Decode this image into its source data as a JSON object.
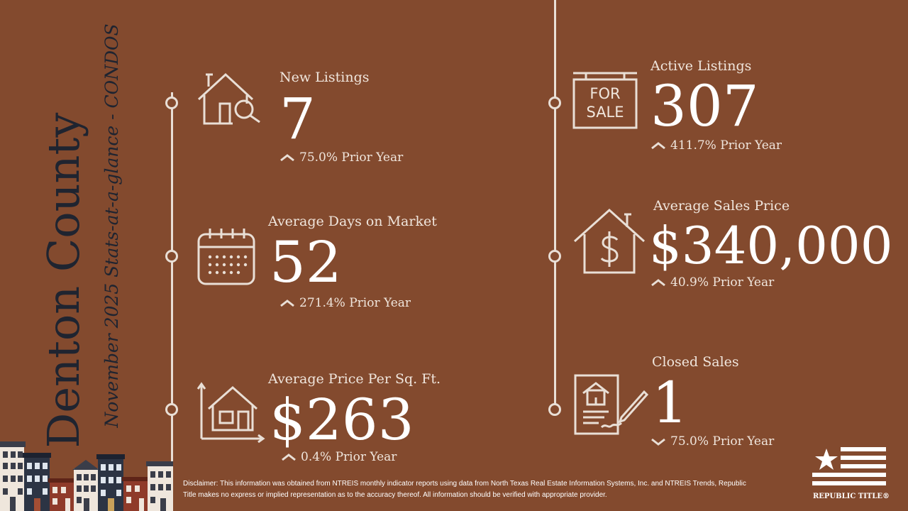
{
  "sidebar": {
    "title": "Denton County",
    "subtitle": "November 2025 Stats-at-a-glance - CONDOS"
  },
  "stats": {
    "new_listings": {
      "label": "New Listings",
      "value": "7",
      "change": "75.0% Prior Year",
      "direction": "up",
      "icon": "house-search-icon"
    },
    "avg_days": {
      "label": "Average Days on Market",
      "value": "52",
      "change": "271.4% Prior Year",
      "direction": "up",
      "icon": "calendar-icon"
    },
    "avg_price_sqft": {
      "label": "Average Price Per Sq. Ft.",
      "value": "$263",
      "change": "0.4% Prior Year",
      "direction": "up",
      "icon": "house-dimensions-icon"
    },
    "active_listings": {
      "label": "Active Listings",
      "value": "307",
      "change": "411.7% Prior Year",
      "direction": "up",
      "icon": "for-sale-sign-icon"
    },
    "avg_sales_price": {
      "label": "Average Sales Price",
      "value": "$340,000",
      "change": "40.9% Prior Year",
      "direction": "up",
      "icon": "house-dollar-icon"
    },
    "closed_sales": {
      "label": "Closed Sales",
      "value": "1",
      "change": "75.0% Prior Year",
      "direction": "down",
      "icon": "contract-sign-icon"
    }
  },
  "sign_text": {
    "line1": "FOR",
    "line2": "SALE"
  },
  "disclaimer": "Disclaimer: This information was obtained from NTREIS monthly indicator reports using data from North Texas Real Estate Information Systems, Inc. and NTREIS Trends, Republic Title makes no express or implied representation as to the accuracy thereof. All information should be verified with appropriate provider.",
  "logo": {
    "text": "REPUBLIC TITLE®"
  },
  "colors": {
    "background": "#834a2e",
    "text": "#f3ebe4",
    "title": "#1f2430"
  }
}
